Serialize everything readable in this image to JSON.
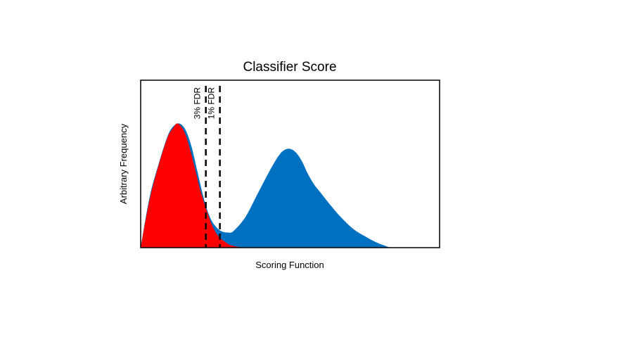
{
  "chart_data": {
    "type": "area",
    "title": "Classifier Score",
    "xlabel": "Scoring Function",
    "ylabel": "Arbitrary Frequency",
    "xlim": [
      0,
      100
    ],
    "ylim": [
      0,
      100
    ],
    "grid": false,
    "legend": "none",
    "series": [
      {
        "color": "#0070C0",
        "x": [
          0,
          3,
          6,
          9,
          11,
          13,
          15,
          17,
          19,
          21,
          23,
          25,
          27,
          29,
          31,
          35,
          39,
          43,
          46,
          48,
          50,
          52,
          54,
          56,
          58,
          60,
          63,
          67,
          71,
          75,
          79,
          83.5
        ],
        "y": [
          0,
          40,
          66,
          88,
          96,
          98,
          93,
          80,
          60,
          40,
          25,
          17,
          13,
          12,
          13,
          24,
          42,
          60,
          72,
          77,
          78,
          75,
          68,
          58,
          50,
          44,
          35,
          24,
          15,
          9,
          4,
          0
        ]
      },
      {
        "color": "#FF0000",
        "x": [
          0,
          3,
          6,
          9,
          11,
          12,
          13,
          14.5,
          16,
          18,
          20,
          22,
          24,
          26,
          28,
          30,
          33,
          36
        ],
        "y": [
          0,
          38,
          65,
          87,
          95,
          98,
          97,
          92,
          82,
          64,
          45,
          30,
          17,
          9,
          5,
          2,
          0.5,
          0
        ]
      }
    ],
    "annotations": [
      {
        "label": "3% FDR",
        "x": 21.8
      },
      {
        "label": "1% FDR",
        "x": 26.5
      }
    ]
  }
}
